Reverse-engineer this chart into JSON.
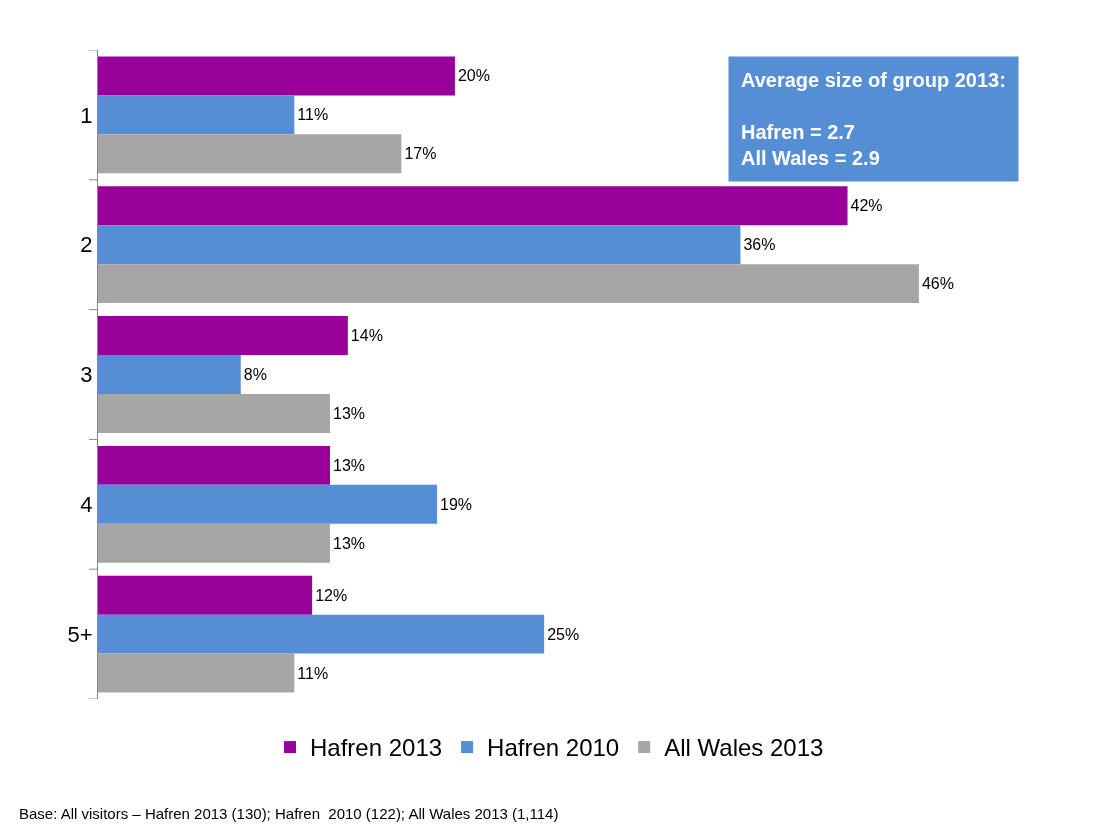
{
  "chart_data": {
    "type": "bar",
    "orientation": "horizontal",
    "categories": [
      "1",
      "2",
      "3",
      "4",
      "5+"
    ],
    "series": [
      {
        "name": "Hafren 2013",
        "color": "#990099",
        "values": [
          20,
          42,
          14,
          13,
          12
        ],
        "value_labels": [
          "20%",
          "42%",
          "14%",
          "13%",
          "12%"
        ]
      },
      {
        "name": "Hafren 2010",
        "color": "#558ed5",
        "values": [
          11,
          36,
          8,
          19,
          25
        ],
        "value_labels": [
          "11%",
          "36%",
          "8%",
          "19%",
          "25%"
        ]
      },
      {
        "name": "All Wales 2013",
        "color": "#a6a6a6",
        "values": [
          17,
          46,
          13,
          13,
          11
        ],
        "value_labels": [
          "17%",
          "46%",
          "13%",
          "13%",
          "11%"
        ]
      }
    ],
    "annotations": [
      "Average size of group 2013:\n\nHafren = 2.7\nAll Wales = 2.9",
      "Base: All visitors – Hafren 2013 (130); Hafren  2010 (122); All Wales 2013 (1,114)"
    ],
    "legend": "bottom",
    "grid": false
  }
}
